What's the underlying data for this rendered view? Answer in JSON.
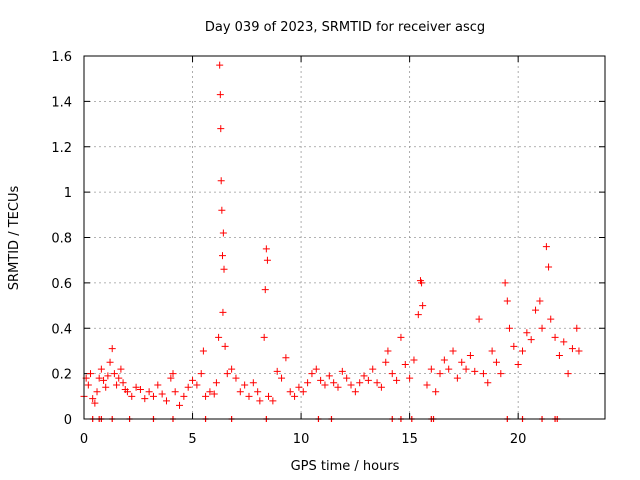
{
  "chart_data": {
    "type": "scatter",
    "title": "Day 039 of 2023, SRMTID for receiver ascg",
    "xlabel": "GPS time / hours",
    "ylabel": "SRMTID / TECUs",
    "xlim": [
      0,
      24
    ],
    "ylim": [
      0,
      1.6
    ],
    "x_ticks": [
      0,
      5,
      10,
      15,
      20
    ],
    "x_tick_labels": [
      "0",
      "5",
      "10",
      "15",
      "20"
    ],
    "y_ticks": [
      0,
      0.2,
      0.4,
      0.6,
      0.8,
      1.0,
      1.2,
      1.4,
      1.6
    ],
    "y_tick_labels": [
      "0",
      "0.2",
      "0.4",
      "0.6",
      "0.8",
      "1",
      "1.2",
      "1.4",
      "1.6"
    ],
    "grid": true,
    "marker": "+",
    "series": [
      {
        "name": "SRMTID",
        "color": "#ff0000",
        "points": [
          [
            0.0,
            0.1
          ],
          [
            0.1,
            0.18
          ],
          [
            0.2,
            0.15
          ],
          [
            0.3,
            0.2
          ],
          [
            0.4,
            0.09
          ],
          [
            0.5,
            0.07
          ],
          [
            0.6,
            0.12
          ],
          [
            0.7,
            0.18
          ],
          [
            0.8,
            0.22
          ],
          [
            0.9,
            0.17
          ],
          [
            1.0,
            0.14
          ],
          [
            1.1,
            0.19
          ],
          [
            1.2,
            0.25
          ],
          [
            1.3,
            0.31
          ],
          [
            1.4,
            0.2
          ],
          [
            1.5,
            0.15
          ],
          [
            1.6,
            0.18
          ],
          [
            1.7,
            0.22
          ],
          [
            1.8,
            0.16
          ],
          [
            1.9,
            0.13
          ],
          [
            2.0,
            0.12
          ],
          [
            2.2,
            0.1
          ],
          [
            2.4,
            0.14
          ],
          [
            2.6,
            0.13
          ],
          [
            2.8,
            0.09
          ],
          [
            3.0,
            0.12
          ],
          [
            3.2,
            0.1
          ],
          [
            3.4,
            0.15
          ],
          [
            3.6,
            0.11
          ],
          [
            3.8,
            0.08
          ],
          [
            4.0,
            0.18
          ],
          [
            4.1,
            0.2
          ],
          [
            4.2,
            0.12
          ],
          [
            4.4,
            0.06
          ],
          [
            4.6,
            0.1
          ],
          [
            4.8,
            0.14
          ],
          [
            5.0,
            0.17
          ],
          [
            5.2,
            0.15
          ],
          [
            5.4,
            0.2
          ],
          [
            5.5,
            0.3
          ],
          [
            5.6,
            0.1
          ],
          [
            5.8,
            0.12
          ],
          [
            6.0,
            0.11
          ],
          [
            6.1,
            0.16
          ],
          [
            6.2,
            0.36
          ],
          [
            6.25,
            1.56
          ],
          [
            6.28,
            1.43
          ],
          [
            6.3,
            1.28
          ],
          [
            6.32,
            1.05
          ],
          [
            6.35,
            0.92
          ],
          [
            6.38,
            0.72
          ],
          [
            6.4,
            0.47
          ],
          [
            6.42,
            0.82
          ],
          [
            6.45,
            0.66
          ],
          [
            6.5,
            0.32
          ],
          [
            6.6,
            0.2
          ],
          [
            6.8,
            0.22
          ],
          [
            7.0,
            0.18
          ],
          [
            7.2,
            0.12
          ],
          [
            7.4,
            0.15
          ],
          [
            7.6,
            0.1
          ],
          [
            7.8,
            0.16
          ],
          [
            8.0,
            0.12
          ],
          [
            8.1,
            0.08
          ],
          [
            8.3,
            0.36
          ],
          [
            8.35,
            0.57
          ],
          [
            8.4,
            0.75
          ],
          [
            8.45,
            0.7
          ],
          [
            8.5,
            0.1
          ],
          [
            8.7,
            0.08
          ],
          [
            8.9,
            0.21
          ],
          [
            9.1,
            0.18
          ],
          [
            9.3,
            0.27
          ],
          [
            9.5,
            0.12
          ],
          [
            9.7,
            0.1
          ],
          [
            9.9,
            0.14
          ],
          [
            10.1,
            0.12
          ],
          [
            10.3,
            0.16
          ],
          [
            10.5,
            0.2
          ],
          [
            10.7,
            0.22
          ],
          [
            10.9,
            0.17
          ],
          [
            11.1,
            0.15
          ],
          [
            11.3,
            0.19
          ],
          [
            11.5,
            0.16
          ],
          [
            11.7,
            0.14
          ],
          [
            11.9,
            0.21
          ],
          [
            12.1,
            0.18
          ],
          [
            12.3,
            0.15
          ],
          [
            12.5,
            0.12
          ],
          [
            12.7,
            0.16
          ],
          [
            12.9,
            0.19
          ],
          [
            13.1,
            0.17
          ],
          [
            13.3,
            0.22
          ],
          [
            13.5,
            0.16
          ],
          [
            13.7,
            0.14
          ],
          [
            13.9,
            0.25
          ],
          [
            14.0,
            0.3
          ],
          [
            14.2,
            0.2
          ],
          [
            14.4,
            0.17
          ],
          [
            14.6,
            0.36
          ],
          [
            14.8,
            0.24
          ],
          [
            15.0,
            0.18
          ],
          [
            15.2,
            0.26
          ],
          [
            15.4,
            0.46
          ],
          [
            15.5,
            0.61
          ],
          [
            15.55,
            0.6
          ],
          [
            15.6,
            0.5
          ],
          [
            15.8,
            0.15
          ],
          [
            16.0,
            0.22
          ],
          [
            16.2,
            0.12
          ],
          [
            16.4,
            0.2
          ],
          [
            16.6,
            0.26
          ],
          [
            16.8,
            0.22
          ],
          [
            17.0,
            0.3
          ],
          [
            17.2,
            0.18
          ],
          [
            17.4,
            0.25
          ],
          [
            17.6,
            0.22
          ],
          [
            17.8,
            0.28
          ],
          [
            18.0,
            0.21
          ],
          [
            18.2,
            0.44
          ],
          [
            18.4,
            0.2
          ],
          [
            18.6,
            0.16
          ],
          [
            18.8,
            0.3
          ],
          [
            19.0,
            0.25
          ],
          [
            19.2,
            0.2
          ],
          [
            19.4,
            0.6
          ],
          [
            19.5,
            0.52
          ],
          [
            19.6,
            0.4
          ],
          [
            19.8,
            0.32
          ],
          [
            20.0,
            0.24
          ],
          [
            20.2,
            0.3
          ],
          [
            20.4,
            0.38
          ],
          [
            20.6,
            0.35
          ],
          [
            20.8,
            0.48
          ],
          [
            21.0,
            0.52
          ],
          [
            21.1,
            0.4
          ],
          [
            21.3,
            0.76
          ],
          [
            21.4,
            0.67
          ],
          [
            21.5,
            0.44
          ],
          [
            21.7,
            0.36
          ],
          [
            21.9,
            0.28
          ],
          [
            22.1,
            0.34
          ],
          [
            22.3,
            0.2
          ],
          [
            22.5,
            0.31
          ],
          [
            22.7,
            0.4
          ],
          [
            22.8,
            0.3
          ]
        ]
      }
    ],
    "baseline_markers": [
      0.4,
      0.7,
      0.8,
      1.3,
      2.1,
      3.2,
      4.1,
      5.6,
      6.8,
      8.4,
      10.8,
      11.4,
      14.2,
      14.6,
      15.1,
      16.0,
      16.1,
      19.5,
      20.2,
      21.1,
      21.7,
      21.8
    ]
  }
}
